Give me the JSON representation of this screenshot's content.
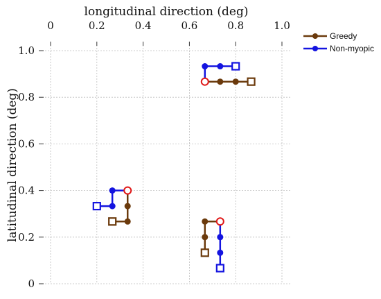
{
  "chart_data": {
    "type": "line",
    "xlabel": "longitudinal direction (deg)",
    "ylabel": "latitudinal direction (deg)",
    "x_ticks": [
      "0",
      "0.2",
      "0.4",
      "0.6",
      "0.8",
      "1.0"
    ],
    "y_ticks": [
      "0",
      "0.2",
      "0.4",
      "0.6",
      "0.8",
      "1.0"
    ],
    "xlim": [
      0,
      1.0
    ],
    "ylim": [
      0,
      1.0
    ],
    "x_axis_position": "top",
    "grid": true,
    "legend": "top-right",
    "start_marker": "red open circle",
    "end_marker": "open square",
    "series": [
      {
        "name": "Greedy",
        "color": "#6b3a0c",
        "paths": [
          {
            "x": [
              0.667,
              0.733,
              0.8,
              0.867
            ],
            "y": [
              0.867,
              0.867,
              0.867,
              0.867
            ]
          },
          {
            "x": [
              0.333,
              0.333,
              0.333,
              0.267
            ],
            "y": [
              0.4,
              0.333,
              0.267,
              0.267
            ]
          },
          {
            "x": [
              0.733,
              0.667,
              0.667,
              0.667
            ],
            "y": [
              0.267,
              0.267,
              0.2,
              0.133
            ]
          }
        ]
      },
      {
        "name": "Non-myopic",
        "color": "#1414e0",
        "paths": [
          {
            "x": [
              0.667,
              0.667,
              0.733,
              0.8
            ],
            "y": [
              0.867,
              0.933,
              0.933,
              0.933
            ]
          },
          {
            "x": [
              0.333,
              0.267,
              0.267,
              0.2
            ],
            "y": [
              0.4,
              0.4,
              0.333,
              0.333
            ]
          },
          {
            "x": [
              0.733,
              0.733,
              0.733,
              0.733
            ],
            "y": [
              0.267,
              0.2,
              0.133,
              0.067
            ]
          }
        ]
      }
    ]
  }
}
